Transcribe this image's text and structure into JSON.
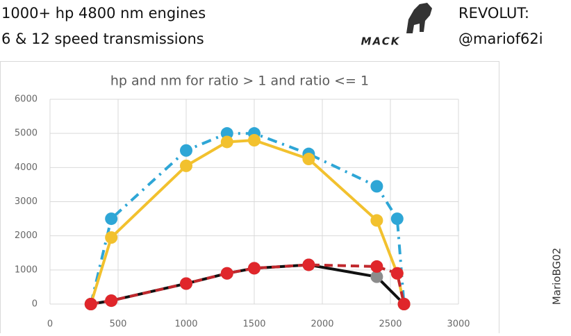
{
  "header": {
    "left": [
      "1000+ hp 4800 nm engines",
      "6 & 12 speed transmissions"
    ],
    "logo": "MACK",
    "right": [
      "REVOLUT:",
      "@mariof62i"
    ]
  },
  "watermark": "MarioBG02",
  "chart_data": {
    "type": "line",
    "title": "hp and nm for ratio > 1 and ratio <= 1",
    "xlim": [
      0,
      3000
    ],
    "xticks": [
      0,
      500,
      1000,
      1500,
      2000,
      2500,
      3000
    ],
    "ylim": [
      0,
      6000
    ],
    "yticks": [
      0,
      1000,
      2000,
      3000,
      4000,
      5000,
      6000
    ],
    "grid": true,
    "series": [
      {
        "color": "#2ea6d6",
        "dashed": true,
        "marker_color": "#2ea6d6",
        "x": [
          300,
          450,
          1000,
          1300,
          1500,
          1900,
          2400,
          2550,
          2600
        ],
        "values": [
          0,
          2500,
          4500,
          5000,
          5000,
          4400,
          3450,
          2500,
          0
        ]
      },
      {
        "color": "#f2c12e",
        "dashed": false,
        "marker_color": "#f2c12e",
        "x": [
          300,
          450,
          1000,
          1300,
          1500,
          1900,
          2400,
          2550,
          2600
        ],
        "values": [
          0,
          1950,
          4050,
          4750,
          4800,
          4250,
          2450,
          900,
          0
        ]
      },
      {
        "color": "#111111",
        "dashed": false,
        "marker_color": "#8c8c8c",
        "x": [
          300,
          450,
          1000,
          1300,
          1500,
          1900,
          2400,
          2600
        ],
        "values": [
          0,
          100,
          600,
          900,
          1050,
          1150,
          800,
          0
        ]
      },
      {
        "color": "#c0282d",
        "dashed": true,
        "marker_color": "#e0262b",
        "x": [
          300,
          450,
          1000,
          1300,
          1500,
          1900,
          2400,
          2550,
          2600
        ],
        "values": [
          0,
          100,
          600,
          900,
          1050,
          1150,
          1100,
          900,
          0
        ]
      }
    ]
  }
}
